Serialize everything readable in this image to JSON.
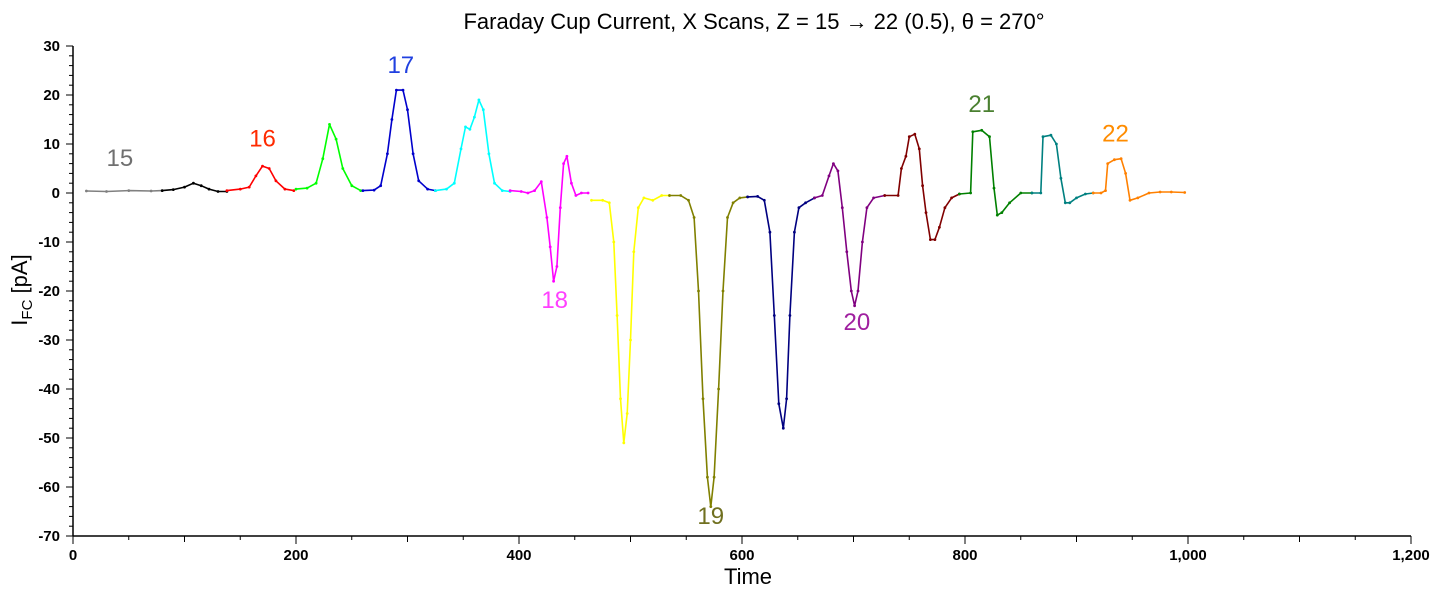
{
  "chart_data": {
    "type": "line",
    "title": "Faraday Cup Current, X Scans, Z = 15 → 22 (0.5), θ = 270°",
    "xlabel": "Time",
    "ylabel_main": "I",
    "ylabel_sub": "FC",
    "ylabel_unit": " [pA]",
    "xlim": [
      0,
      1200
    ],
    "ylim": [
      -70,
      30
    ],
    "x_ticks": [
      {
        "v": 0,
        "label": "0"
      },
      {
        "v": 200,
        "label": "200"
      },
      {
        "v": 400,
        "label": "400"
      },
      {
        "v": 600,
        "label": "600"
      },
      {
        "v": 800,
        "label": "800"
      },
      {
        "v": 1000,
        "label": "1,000"
      },
      {
        "v": 1200,
        "label": "1,200"
      }
    ],
    "y_ticks": [
      {
        "v": 30,
        "label": "30"
      },
      {
        "v": 20,
        "label": "20"
      },
      {
        "v": 10,
        "label": "10"
      },
      {
        "v": 0,
        "label": "0"
      },
      {
        "v": -10,
        "label": "-10"
      },
      {
        "v": -20,
        "label": "-20"
      },
      {
        "v": -30,
        "label": "-30"
      },
      {
        "v": -40,
        "label": "-40"
      },
      {
        "v": -50,
        "label": "-50"
      },
      {
        "v": -60,
        "label": "-60"
      },
      {
        "v": -70,
        "label": "-70"
      }
    ],
    "grid": false,
    "series": [
      {
        "color": "#808080",
        "points": [
          [
            12,
            0.4
          ],
          [
            30,
            0.3
          ],
          [
            50,
            0.5
          ],
          [
            70,
            0.4
          ],
          [
            80,
            0.5
          ]
        ]
      },
      {
        "color": "#000000",
        "points": [
          [
            80,
            0.5
          ],
          [
            90,
            0.7
          ],
          [
            100,
            1.2
          ],
          [
            108,
            2.0
          ],
          [
            115,
            1.5
          ],
          [
            122,
            0.8
          ],
          [
            130,
            0.3
          ],
          [
            138,
            0.3
          ]
        ]
      },
      {
        "color": "#ff0000",
        "points": [
          [
            138,
            0.5
          ],
          [
            150,
            0.8
          ],
          [
            158,
            1.2
          ],
          [
            164,
            3.5
          ],
          [
            170,
            5.5
          ],
          [
            176,
            5.0
          ],
          [
            182,
            2.5
          ],
          [
            190,
            0.8
          ],
          [
            198,
            0.5
          ]
        ]
      },
      {
        "color": "#00ff00",
        "points": [
          [
            200,
            0.8
          ],
          [
            210,
            1.0
          ],
          [
            218,
            2.0
          ],
          [
            224,
            7.0
          ],
          [
            230,
            14.0
          ],
          [
            236,
            11.0
          ],
          [
            242,
            5.0
          ],
          [
            250,
            1.5
          ],
          [
            258,
            0.5
          ]
        ]
      },
      {
        "color": "#0000cc",
        "points": [
          [
            260,
            0.5
          ],
          [
            270,
            0.6
          ],
          [
            276,
            1.5
          ],
          [
            282,
            8.0
          ],
          [
            286,
            15.0
          ],
          [
            290,
            21.0
          ],
          [
            296,
            21.0
          ],
          [
            300,
            17.0
          ],
          [
            305,
            8.0
          ],
          [
            310,
            2.5
          ],
          [
            318,
            0.8
          ],
          [
            325,
            0.5
          ]
        ]
      },
      {
        "color": "#00ffff",
        "points": [
          [
            325,
            0.5
          ],
          [
            335,
            0.8
          ],
          [
            342,
            2.0
          ],
          [
            348,
            9.0
          ],
          [
            352,
            13.5
          ],
          [
            356,
            13.0
          ],
          [
            360,
            15.5
          ],
          [
            364,
            19.0
          ],
          [
            368,
            17.0
          ],
          [
            373,
            8.0
          ],
          [
            378,
            2.0
          ],
          [
            385,
            0.5
          ],
          [
            392,
            0.3
          ]
        ]
      },
      {
        "color": "#ff00ff",
        "points": [
          [
            392,
            0.5
          ],
          [
            402,
            0.3
          ],
          [
            408,
            0
          ],
          [
            414,
            0.5
          ],
          [
            420,
            2.3
          ],
          [
            425,
            -5.0
          ],
          [
            428,
            -11.0
          ],
          [
            431,
            -18.0
          ],
          [
            434,
            -15.0
          ],
          [
            437,
            -3.0
          ],
          [
            440,
            6.0
          ],
          [
            443,
            7.5
          ],
          [
            447,
            2.0
          ],
          [
            451,
            -0.5
          ],
          [
            456,
            0
          ],
          [
            462,
            0
          ]
        ]
      },
      {
        "color": "#ffff00",
        "points": [
          [
            465,
            -1.5
          ],
          [
            475,
            -1.5
          ],
          [
            481,
            -2.0
          ],
          [
            485,
            -10.0
          ],
          [
            488,
            -25.0
          ],
          [
            491,
            -42.0
          ],
          [
            494,
            -51.0
          ],
          [
            497,
            -45.0
          ],
          [
            500,
            -30.0
          ],
          [
            503,
            -12.0
          ],
          [
            507,
            -3.0
          ],
          [
            512,
            -1.0
          ],
          [
            520,
            -1.5
          ],
          [
            528,
            -0.5
          ],
          [
            535,
            -0.5
          ]
        ]
      },
      {
        "color": "#808000",
        "points": [
          [
            535,
            -0.5
          ],
          [
            545,
            -0.5
          ],
          [
            552,
            -1.5
          ],
          [
            557,
            -5.0
          ],
          [
            561,
            -20.0
          ],
          [
            565,
            -42.0
          ],
          [
            569,
            -58.0
          ],
          [
            572,
            -64.0
          ],
          [
            575,
            -58.0
          ],
          [
            579,
            -40.0
          ],
          [
            583,
            -20.0
          ],
          [
            587,
            -5.0
          ],
          [
            592,
            -2.0
          ],
          [
            598,
            -1.0
          ],
          [
            605,
            -0.8
          ]
        ]
      },
      {
        "color": "#000080",
        "points": [
          [
            605,
            -0.8
          ],
          [
            614,
            -0.7
          ],
          [
            620,
            -1.5
          ],
          [
            625,
            -8.0
          ],
          [
            629,
            -25.0
          ],
          [
            633,
            -43.0
          ],
          [
            637,
            -48.0
          ],
          [
            640,
            -42.0
          ],
          [
            643,
            -25.0
          ],
          [
            647,
            -8.0
          ],
          [
            651,
            -3.0
          ],
          [
            657,
            -2.0
          ],
          [
            665,
            -1.0
          ]
        ]
      },
      {
        "color": "#800080",
        "points": [
          [
            665,
            -1.0
          ],
          [
            672,
            -0.5
          ],
          [
            678,
            3.5
          ],
          [
            682,
            6.0
          ],
          [
            686,
            4.5
          ],
          [
            690,
            -3.0
          ],
          [
            694,
            -12.0
          ],
          [
            698,
            -20.0
          ],
          [
            701,
            -23.0
          ],
          [
            704,
            -20.0
          ],
          [
            708,
            -10.0
          ],
          [
            712,
            -3.0
          ],
          [
            718,
            -1.0
          ],
          [
            728,
            -0.5
          ]
        ]
      },
      {
        "color": "#800000",
        "points": [
          [
            728,
            -0.5
          ],
          [
            740,
            -0.5
          ],
          [
            743,
            5.0
          ],
          [
            747,
            7.5
          ],
          [
            750,
            11.5
          ],
          [
            755,
            12.0
          ],
          [
            759,
            9.0
          ],
          [
            762,
            1.5
          ],
          [
            765,
            -4.0
          ],
          [
            769,
            -9.5
          ],
          [
            773,
            -9.5
          ],
          [
            777,
            -7.0
          ],
          [
            782,
            -3.0
          ],
          [
            788,
            -1.0
          ],
          [
            795,
            -0.2
          ]
        ]
      },
      {
        "color": "#008000",
        "points": [
          [
            795,
            -0.2
          ],
          [
            805,
            0
          ],
          [
            807,
            12.5
          ],
          [
            815,
            12.8
          ],
          [
            822,
            11.5
          ],
          [
            826,
            1.0
          ],
          [
            829,
            -4.5
          ],
          [
            833,
            -4.0
          ],
          [
            840,
            -2.0
          ],
          [
            850,
            0
          ],
          [
            860,
            0
          ]
        ]
      },
      {
        "color": "#008080",
        "points": [
          [
            860,
            0
          ],
          [
            868,
            0
          ],
          [
            870,
            11.5
          ],
          [
            877,
            11.8
          ],
          [
            882,
            10.0
          ],
          [
            886,
            3.0
          ],
          [
            890,
            -2.0
          ],
          [
            894,
            -2.0
          ],
          [
            900,
            -1.0
          ],
          [
            908,
            -0.2
          ],
          [
            915,
            0
          ]
        ]
      },
      {
        "color": "#ff8000",
        "points": [
          [
            915,
            0
          ],
          [
            922,
            0
          ],
          [
            926,
            0.5
          ],
          [
            928,
            6.0
          ],
          [
            934,
            6.8
          ],
          [
            940,
            7.0
          ],
          [
            944,
            4.0
          ],
          [
            948,
            -1.5
          ],
          [
            955,
            -1.0
          ],
          [
            965,
            0
          ],
          [
            975,
            0.2
          ],
          [
            985,
            0.2
          ],
          [
            997,
            0.1
          ]
        ]
      }
    ],
    "annotations": [
      {
        "text": "15",
        "x": 42,
        "y": 5.5,
        "color": "#707070"
      },
      {
        "text": "16",
        "x": 170,
        "y": 9.5,
        "color": "#ff2a00"
      },
      {
        "text": "17",
        "x": 294,
        "y": 24.5,
        "color": "#2040e0"
      },
      {
        "text": "18",
        "x": 432,
        "y": -23.5,
        "color": "#ff40ff"
      },
      {
        "text": "19",
        "x": 572,
        "y": -67.5,
        "color": "#707020"
      },
      {
        "text": "20",
        "x": 703,
        "y": -28.0,
        "color": "#a020a0"
      },
      {
        "text": "21",
        "x": 815,
        "y": 16.5,
        "color": "#4a8030"
      },
      {
        "text": "22",
        "x": 935,
        "y": 10.5,
        "color": "#ff8c00"
      }
    ]
  }
}
